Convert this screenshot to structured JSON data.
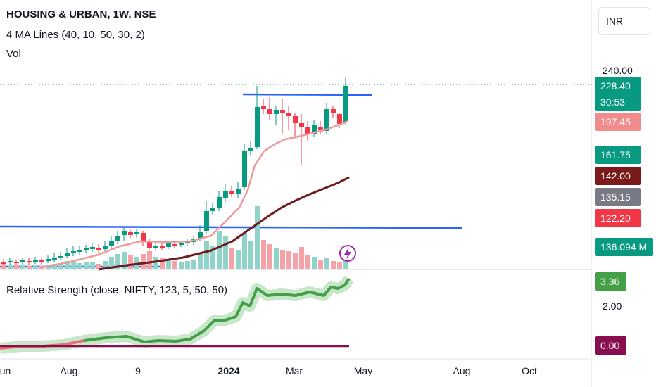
{
  "legend": {
    "symbol": "HOUSING & URBAN, 1W, NSE",
    "ma_indicator": "4 MA Lines (40, 10, 50, 30, 2)",
    "volume": "Vol",
    "rs_indicator": "Relative Strength (close, NIFTY, 123, 5, 50, 50)"
  },
  "currency": "INR",
  "price_axis": {
    "top_label": "240.00",
    "rs_label": "2.00"
  },
  "price_tags": [
    {
      "key": "last",
      "text": "228.40",
      "color": "#089981"
    },
    {
      "key": "countdown",
      "text": "30:53",
      "color": "#089981"
    },
    {
      "key": "ma_fast",
      "text": "197.45",
      "color": "#f28b8b"
    },
    {
      "key": "level_a",
      "text": "161.75",
      "color": "#089981"
    },
    {
      "key": "ma_slow",
      "text": "142.00",
      "color": "#7a1a1a"
    },
    {
      "key": "level_b",
      "text": "135.15",
      "color": "#787b86"
    },
    {
      "key": "level_c",
      "text": "122.20",
      "color": "#f23645"
    },
    {
      "key": "volume_val",
      "text": "136.094 M",
      "color": "#089981"
    }
  ],
  "rs_tags": [
    {
      "key": "rs_value",
      "text": "3.36",
      "color": "#43a047"
    },
    {
      "key": "rs_zero",
      "text": "0.00",
      "color": "#880e4f"
    }
  ],
  "time_axis": [
    "Jun",
    "Aug",
    "9",
    "2024",
    "Mar",
    "May",
    "Aug",
    "Oct"
  ],
  "colors": {
    "up": "#089981",
    "down": "#f23645",
    "ma_fast": "#ef9a9a",
    "ma_slow": "#6d1b1b",
    "trendline": "#2962ff",
    "rs_line": "#43a047",
    "rs_band": "#c8e6c9",
    "rs_zero": "#880e4f",
    "alert": "#9c27b0"
  },
  "icons": {
    "alert": "lightning-icon"
  }
}
